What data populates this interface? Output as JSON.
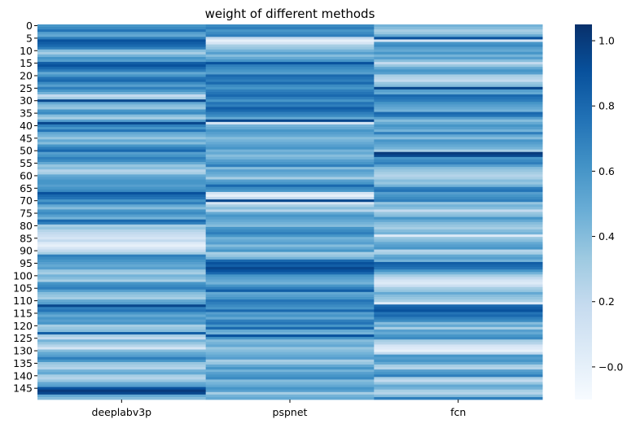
{
  "chart_data": {
    "type": "heatmap",
    "title": "weight of different methods",
    "xlabel": "",
    "ylabel": "",
    "columns": [
      "deeplabv3p",
      "pspnet",
      "fcn"
    ],
    "row_count": 150,
    "y_tick_labels": [
      "0",
      "5",
      "10",
      "15",
      "20",
      "25",
      "30",
      "35",
      "40",
      "45",
      "50",
      "55",
      "60",
      "65",
      "70",
      "75",
      "80",
      "85",
      "90",
      "95",
      "100",
      "105",
      "110",
      "115",
      "120",
      "125",
      "130",
      "135",
      "140",
      "145"
    ],
    "colorbar": {
      "vmin": -0.1,
      "vmax": 1.05,
      "ticks": [
        -0.0,
        0.2,
        0.4,
        0.6,
        0.8,
        1.0
      ],
      "tick_labels": [
        "−0.0",
        "0.2",
        "0.4",
        "0.6",
        "0.8",
        "1.0"
      ],
      "colormap": "Blues",
      "colormap_stops": [
        "#f7fbff",
        "#deebf7",
        "#c6dbef",
        "#9ecae1",
        "#6baed6",
        "#4292c6",
        "#2171b5",
        "#08519c",
        "#08306b"
      ]
    },
    "series": [
      {
        "name": "deeplabv3p",
        "values": [
          0.6,
          0.65,
          0.75,
          0.55,
          0.5,
          0.7,
          0.9,
          0.85,
          0.8,
          0.7,
          0.4,
          0.3,
          0.45,
          0.6,
          0.55,
          0.85,
          0.9,
          0.8,
          0.7,
          0.5,
          0.6,
          0.75,
          0.8,
          0.65,
          0.55,
          0.7,
          0.6,
          0.45,
          0.2,
          0.3,
          0.95,
          0.5,
          0.4,
          0.35,
          0.6,
          0.65,
          0.4,
          0.3,
          0.55,
          0.95,
          0.7,
          0.6,
          0.75,
          0.5,
          0.45,
          0.35,
          0.5,
          0.4,
          0.6,
          0.7,
          0.8,
          0.55,
          0.6,
          0.7,
          0.65,
          0.5,
          0.35,
          0.4,
          0.25,
          0.3,
          0.5,
          0.55,
          0.6,
          0.6,
          0.55,
          0.6,
          0.65,
          0.9,
          0.8,
          0.75,
          0.6,
          0.7,
          0.5,
          0.4,
          0.6,
          0.65,
          0.55,
          0.45,
          0.8,
          0.7,
          0.3,
          0.35,
          0.25,
          0.2,
          0.15,
          0.1,
          0.2,
          0.05,
          0.0,
          0.1,
          0.2,
          0.3,
          0.7,
          0.65,
          0.6,
          0.55,
          0.5,
          0.55,
          0.35,
          0.3,
          0.45,
          0.4,
          0.3,
          0.6,
          0.65,
          0.7,
          0.55,
          0.4,
          0.35,
          0.3,
          0.5,
          0.55,
          0.95,
          0.7,
          0.75,
          0.6,
          0.5,
          0.6,
          0.55,
          0.6,
          0.3,
          0.35,
          0.4,
          0.85,
          0.3,
          0.2,
          0.45,
          0.35,
          0.25,
          0.1,
          0.4,
          0.5,
          0.55,
          0.7,
          0.6,
          0.35,
          0.3,
          0.25,
          0.45,
          0.5,
          0.3,
          0.25,
          0.35,
          0.5,
          0.55,
          0.9,
          1.0,
          0.95,
          0.5,
          0.4
        ]
      },
      {
        "name": "pspnet",
        "values": [
          0.65,
          0.7,
          0.6,
          0.65,
          0.7,
          0.2,
          0.0,
          0.1,
          0.3,
          0.35,
          0.45,
          0.55,
          0.4,
          0.5,
          0.6,
          0.9,
          0.7,
          0.65,
          0.6,
          0.55,
          0.8,
          0.75,
          0.7,
          0.8,
          0.65,
          0.6,
          0.7,
          0.75,
          0.8,
          0.7,
          0.6,
          0.75,
          0.7,
          0.85,
          0.8,
          0.7,
          0.65,
          0.5,
          0.95,
          0.1,
          0.45,
          0.5,
          0.6,
          0.55,
          0.5,
          0.4,
          0.45,
          0.5,
          0.55,
          0.6,
          0.45,
          0.5,
          0.4,
          0.45,
          0.55,
          0.6,
          0.7,
          0.4,
          0.55,
          0.5,
          0.45,
          0.3,
          0.55,
          0.6,
          0.8,
          0.65,
          0.6,
          0.1,
          0.0,
          0.2,
          0.95,
          0.1,
          0.3,
          0.4,
          0.25,
          0.5,
          0.6,
          0.55,
          0.5,
          0.45,
          0.4,
          0.6,
          0.65,
          0.7,
          0.6,
          0.45,
          0.5,
          0.55,
          0.4,
          0.5,
          0.6,
          0.3,
          0.35,
          0.45,
          0.8,
          0.9,
          0.85,
          0.95,
          0.9,
          0.8,
          0.6,
          0.55,
          0.5,
          0.45,
          0.6,
          0.7,
          0.85,
          0.5,
          0.55,
          0.6,
          0.75,
          0.7,
          0.65,
          0.6,
          0.8,
          0.55,
          0.6,
          0.5,
          0.7,
          0.75,
          0.6,
          0.8,
          0.5,
          0.45,
          0.9,
          0.6,
          0.4,
          0.45,
          0.5,
          0.35,
          0.4,
          0.45,
          0.5,
          0.55,
          0.3,
          0.35,
          0.5,
          0.6,
          0.45,
          0.55,
          0.6,
          0.65,
          0.4,
          0.45,
          0.5,
          0.6,
          0.55,
          0.3,
          0.45,
          0.5
        ]
      },
      {
        "name": "fcn",
        "values": [
          0.45,
          0.4,
          0.3,
          0.35,
          0.5,
          0.9,
          0.1,
          0.6,
          0.65,
          0.55,
          0.5,
          0.6,
          0.45,
          0.55,
          0.4,
          0.2,
          0.35,
          0.5,
          0.6,
          0.55,
          0.3,
          0.25,
          0.2,
          0.35,
          0.4,
          0.95,
          0.55,
          0.5,
          0.8,
          0.75,
          0.7,
          0.6,
          0.55,
          0.5,
          0.45,
          0.8,
          0.75,
          0.55,
          0.4,
          0.5,
          0.6,
          0.55,
          0.45,
          0.7,
          0.5,
          0.4,
          0.6,
          0.55,
          0.5,
          0.45,
          0.3,
          1.0,
          0.95,
          0.6,
          0.65,
          0.7,
          0.55,
          0.4,
          0.35,
          0.3,
          0.25,
          0.3,
          0.4,
          0.35,
          0.45,
          0.7,
          0.75,
          0.55,
          0.6,
          0.65,
          0.7,
          0.35,
          0.45,
          0.4,
          0.2,
          0.35,
          0.4,
          0.6,
          0.5,
          0.4,
          0.35,
          0.3,
          0.4,
          0.45,
          0.05,
          0.35,
          0.4,
          0.5,
          0.55,
          0.6,
          0.25,
          0.3,
          0.5,
          0.55,
          0.45,
          0.85,
          0.8,
          0.75,
          0.6,
          0.45,
          0.3,
          0.2,
          0.1,
          0.05,
          0.15,
          0.3,
          0.35,
          0.5,
          0.4,
          0.35,
          0.3,
          0.05,
          0.8,
          0.85,
          0.9,
          0.75,
          0.8,
          0.7,
          0.65,
          0.4,
          0.5,
          0.3,
          0.55,
          0.5,
          0.6,
          0.65,
          0.3,
          0.25,
          0.1,
          0.05,
          0.0,
          0.2,
          0.6,
          0.55,
          0.6,
          0.5,
          0.3,
          0.25,
          0.55,
          0.6,
          0.7,
          0.3,
          0.2,
          0.35,
          0.5,
          0.45,
          0.3,
          0.25,
          0.4,
          0.7
        ]
      }
    ]
  }
}
